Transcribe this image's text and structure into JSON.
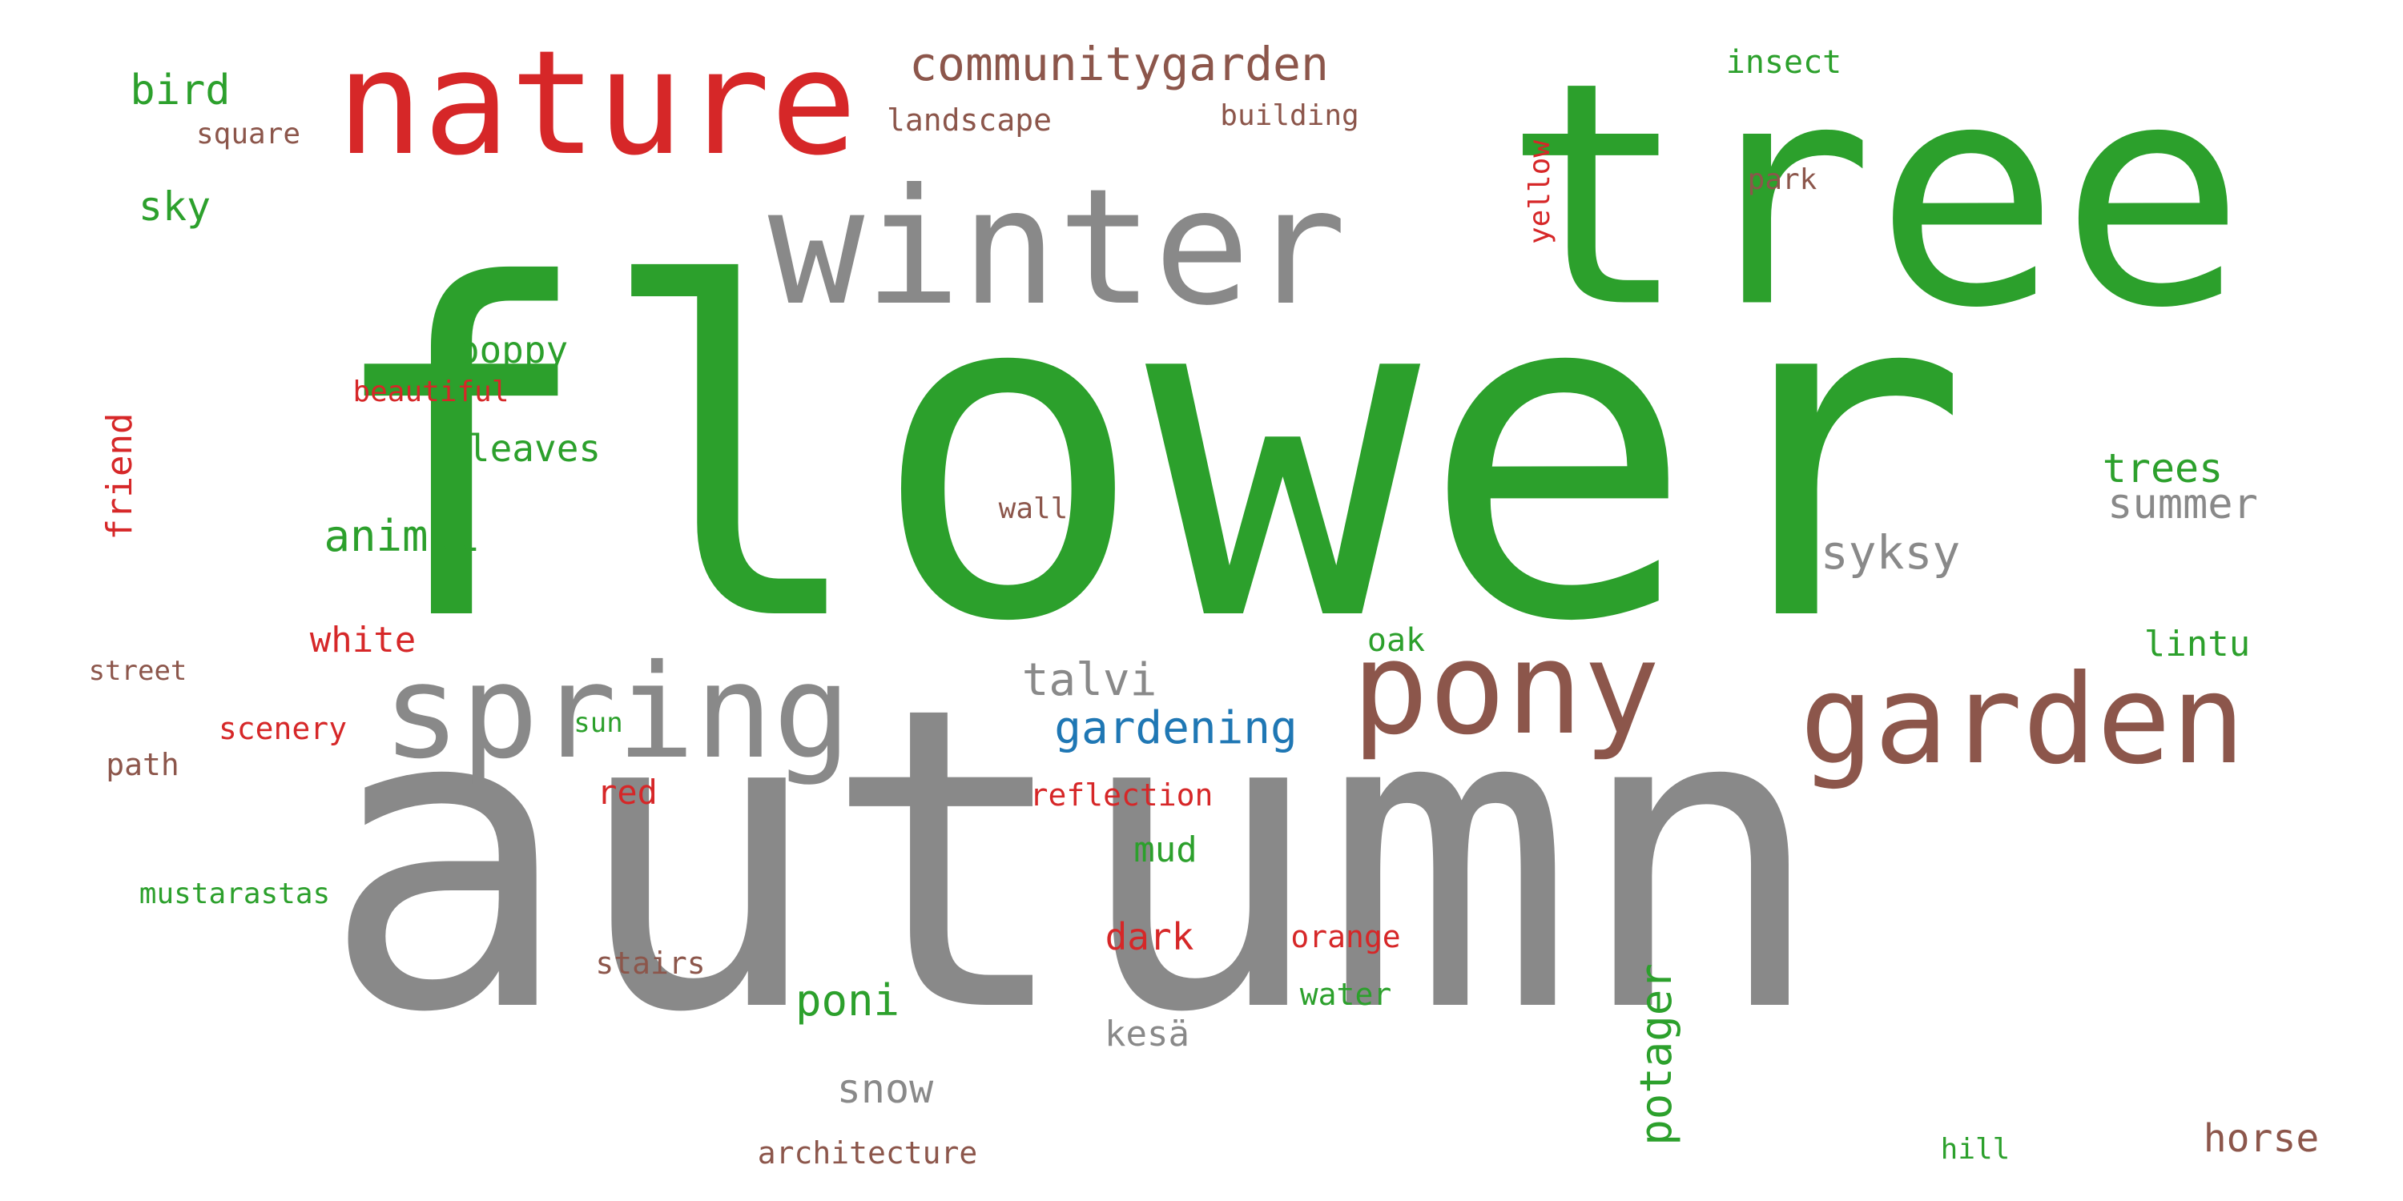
{
  "words": {
    "flower": "flower",
    "autumn": "autumn",
    "tree": "tree",
    "winter": "winter",
    "nature": "nature",
    "spring": "spring",
    "pony": "pony",
    "garden": "garden",
    "communitygarden": "communitygarden",
    "gardening": "gardening",
    "talvi": "talvi",
    "bird": "bird",
    "insect": "insect",
    "landscape": "landscape",
    "building": "building",
    "square": "square",
    "yellow": "yellow",
    "park": "park",
    "sky": "sky",
    "poppy": "poppy",
    "beautiful": "beautiful",
    "friend": "friend",
    "leaves": "leaves",
    "trees": "trees",
    "summer": "summer",
    "animal": "animal",
    "wall": "wall",
    "syksy": "syksy",
    "white": "white",
    "oak": "oak",
    "lintu": "lintu",
    "street": "street",
    "scenery": "scenery",
    "sun": "sun",
    "path": "path",
    "red": "red",
    "reflection": "reflection",
    "mud": "mud",
    "mustarastas": "mustarastas",
    "dark": "dark",
    "orange": "orange",
    "stairs": "stairs",
    "potager": "potager",
    "poni": "poni",
    "water": "water",
    "kesa": "kesä",
    "snow": "snow",
    "horse": "horse",
    "architecture": "architecture",
    "hill": "hill"
  },
  "colors": {
    "green": "#2ca02c",
    "red": "#d62728",
    "gray": "#898989",
    "brown": "#8c564b",
    "blue": "#1f77b4"
  }
}
